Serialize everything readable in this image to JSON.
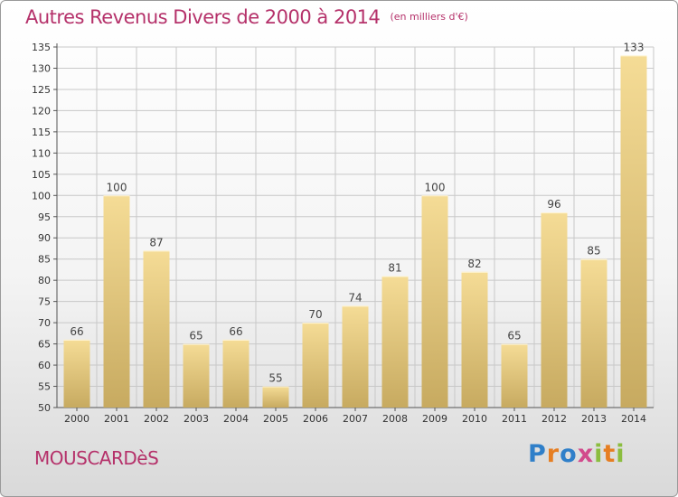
{
  "header": {
    "title": "Autres Revenus Divers de 2000 à 2014",
    "unit": "(en milliers d'€)"
  },
  "commune": "MOUSCARDèS",
  "logo": {
    "text": "Proxiti"
  },
  "colors": {
    "title": "#b5316a",
    "bar_top": "#f5dc96",
    "bar_bottom": "#c7aa60",
    "grid": "#c8c8c8"
  },
  "chart_data": {
    "type": "bar",
    "categories": [
      "2000",
      "2001",
      "2002",
      "2003",
      "2004",
      "2005",
      "2006",
      "2007",
      "2008",
      "2009",
      "2010",
      "2011",
      "2012",
      "2013",
      "2014"
    ],
    "values": [
      66,
      100,
      87,
      65,
      66,
      55,
      70,
      74,
      81,
      100,
      82,
      65,
      96,
      85,
      133
    ],
    "title": "Autres Revenus Divers de 2000 à 2014",
    "subtitle": "(en milliers d'€)",
    "xlabel": "",
    "ylabel": "",
    "ylim": [
      50,
      135
    ],
    "yticks": [
      50,
      55,
      60,
      65,
      70,
      75,
      80,
      85,
      90,
      95,
      100,
      105,
      110,
      115,
      120,
      125,
      130,
      135
    ],
    "grid": true,
    "legend": "none"
  }
}
